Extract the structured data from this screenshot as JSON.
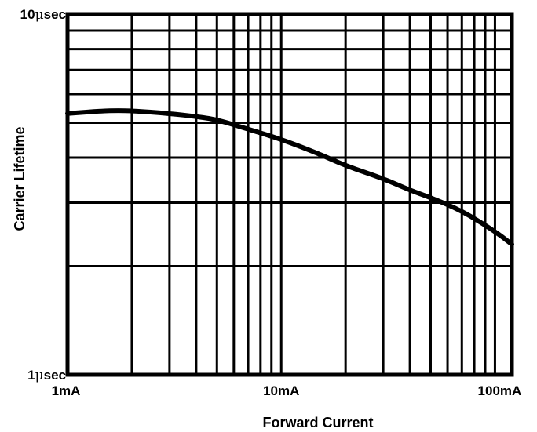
{
  "chart_data": {
    "type": "line",
    "title": "",
    "xlabel": "Forward Current",
    "ylabel": "Carrier Lifetime",
    "x_scale": "log",
    "y_scale": "log",
    "xlim": [
      1,
      120
    ],
    "ylim": [
      1,
      10
    ],
    "x_ticks": [
      {
        "value": 1,
        "label": "1mA"
      },
      {
        "value": 10,
        "label": "10mA"
      },
      {
        "value": 100,
        "label": "100mA"
      }
    ],
    "y_ticks": [
      {
        "value": 1,
        "label_prefix": "1",
        "label_unit": "μsec"
      },
      {
        "value": 10,
        "label_prefix": "10",
        "label_unit": "μsec"
      }
    ],
    "grid": true,
    "x_unit": "mA",
    "y_unit": "μsec",
    "series": [
      {
        "x": [
          1,
          1.5,
          2,
          3,
          4,
          5,
          7,
          10,
          15,
          20,
          30,
          40,
          50,
          70,
          100,
          120
        ],
        "y": [
          5.3,
          5.4,
          5.4,
          5.3,
          5.2,
          5.1,
          4.8,
          4.5,
          4.1,
          3.8,
          3.5,
          3.25,
          3.1,
          2.85,
          2.5,
          2.3
        ]
      }
    ]
  }
}
